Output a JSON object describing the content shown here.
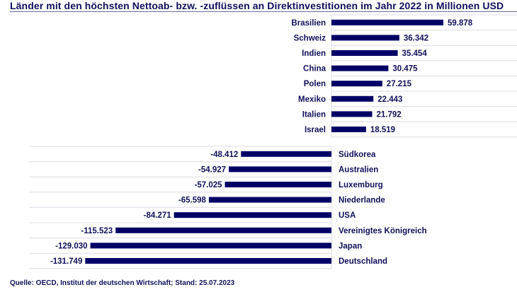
{
  "chart_data": {
    "type": "bar",
    "orientation": "horizontal",
    "title": "Länder mit den höchsten Nettoab- bzw. -zuflüssen an Direktinvestitionen im Jahr 2022 in Millionen USD",
    "source": "Quelle: OECD, Institut der deutschen Wirtschaft; Stand: 25.07.2023",
    "bar_color": "#000066",
    "positive": {
      "categories": [
        "Brasilien",
        "Schweiz",
        "Indien",
        "China",
        "Polen",
        "Mexiko",
        "Italien",
        "Israel"
      ],
      "values": [
        59878,
        36342,
        35454,
        30475,
        27215,
        22443,
        21792,
        18519
      ],
      "labels": [
        "59.878",
        "36.342",
        "35.454",
        "30.475",
        "27.215",
        "22.443",
        "21.792",
        "18.519"
      ]
    },
    "negative": {
      "categories": [
        "Südkorea",
        "Australien",
        "Luxemburg",
        "Niederlande",
        "USA",
        "Vereinigtes Königreich",
        "Japan",
        "Deutschland"
      ],
      "values": [
        -48412,
        -54927,
        -57025,
        -65598,
        -84271,
        -115523,
        -129030,
        -131749
      ],
      "labels": [
        "-48.412",
        "-54.927",
        "-57.025",
        "-65.598",
        "-84.271",
        "-115.523",
        "-129.030",
        "-131.749"
      ]
    },
    "xlabel": "",
    "ylabel": "",
    "grid": true
  }
}
